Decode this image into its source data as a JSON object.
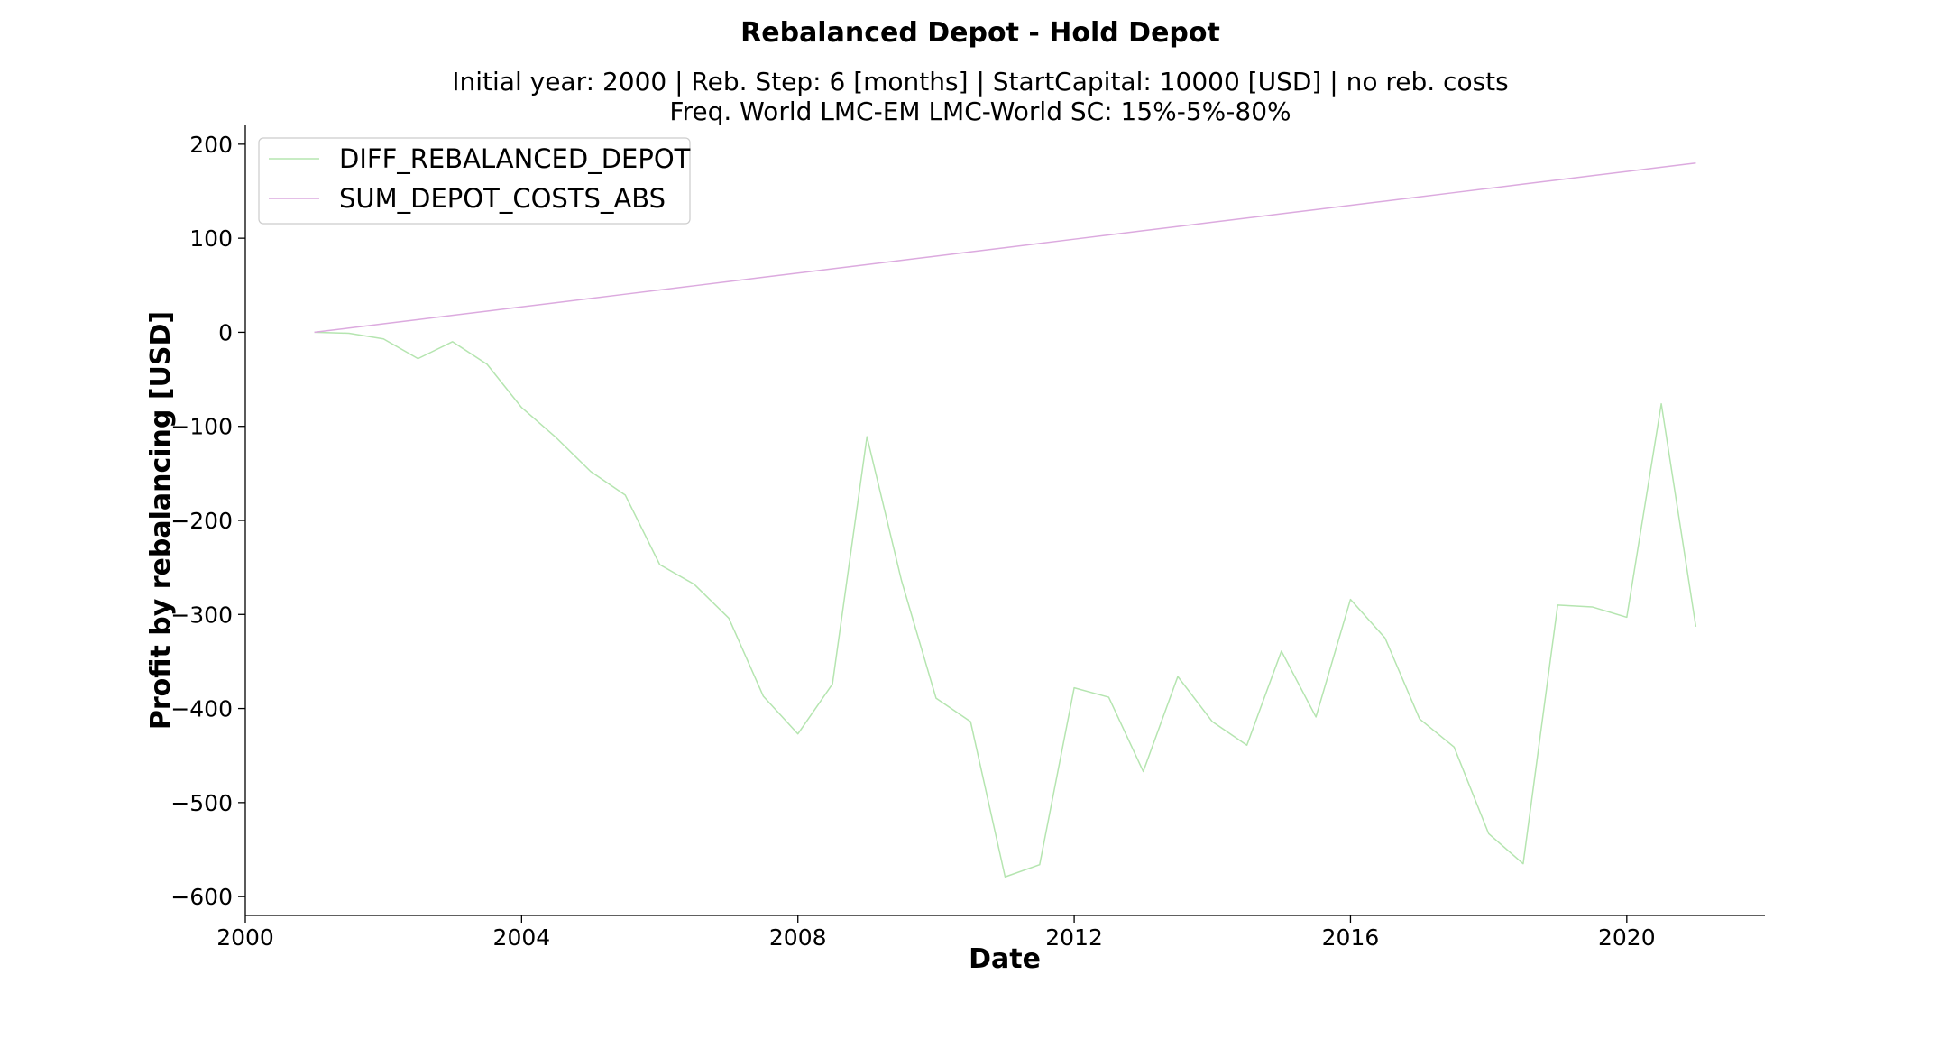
{
  "chart_data": {
    "type": "line",
    "title": "Rebalanced Depot - Hold Depot",
    "subtitle_lines": [
      "Initial year: 2000 | Reb. Step: 6 [months] | StartCapital: 10000 [USD] | no reb. costs",
      "Freq. World LMC-EM LMC-World SC: 15%-5%-80%"
    ],
    "xlabel": "Date",
    "ylabel": "Profit by rebalancing [USD]",
    "xlim": [
      2000,
      2022
    ],
    "ylim": [
      -620,
      220
    ],
    "x_ticks": [
      2000,
      2004,
      2008,
      2012,
      2016,
      2020
    ],
    "x_tick_labels": [
      "2000",
      "2004",
      "2008",
      "2012",
      "2016",
      "2020"
    ],
    "y_ticks": [
      200,
      100,
      0,
      -100,
      -200,
      -300,
      -400,
      -500,
      -600
    ],
    "y_tick_labels": [
      "200",
      "100",
      "0",
      "−100",
      "−200",
      "−300",
      "−400",
      "−500",
      "−600"
    ],
    "grid": false,
    "legend_position": "upper-left",
    "x": [
      2001,
      2001.5,
      2002,
      2002.5,
      2003,
      2003.5,
      2004,
      2004.5,
      2005,
      2005.5,
      2006,
      2006.5,
      2007,
      2007.5,
      2008,
      2008.5,
      2009,
      2009.5,
      2010,
      2010.5,
      2011,
      2011.5,
      2012,
      2012.5,
      2013,
      2013.5,
      2014,
      2014.5,
      2015,
      2015.5,
      2016,
      2016.5,
      2017,
      2017.5,
      2018,
      2018.5,
      2019,
      2019.5,
      2020,
      2020.5,
      2021
    ],
    "series": [
      {
        "name": "DIFF_REBALANCED_DEPOT",
        "color": "#b5e5b0",
        "values": [
          0,
          -1,
          -7,
          -28,
          -10,
          -34,
          -80,
          -112,
          -148,
          -173,
          -247,
          -268,
          -304,
          -387,
          -427,
          -374,
          -111,
          -264,
          -389,
          -414,
          -579,
          -566,
          -378,
          -388,
          -467,
          -366,
          -414,
          -439,
          -339,
          -409,
          -284,
          -325,
          -411,
          -441,
          -533,
          -565,
          -290,
          -292,
          -303,
          -76,
          -313
        ]
      },
      {
        "name": "SUM_DEPOT_COSTS_ABS",
        "color": "#dcaadf",
        "values": [
          0,
          4.5,
          9,
          13.5,
          18,
          22.5,
          27,
          31.5,
          36,
          40.5,
          45,
          49.5,
          54,
          58.5,
          63,
          67.5,
          72,
          76.5,
          81,
          85.5,
          90,
          94.5,
          99,
          103.5,
          108,
          112.5,
          117,
          121.5,
          126,
          130.5,
          135,
          139.5,
          144,
          148.5,
          153,
          157.5,
          162,
          166.5,
          171,
          175.5,
          180
        ]
      }
    ]
  }
}
